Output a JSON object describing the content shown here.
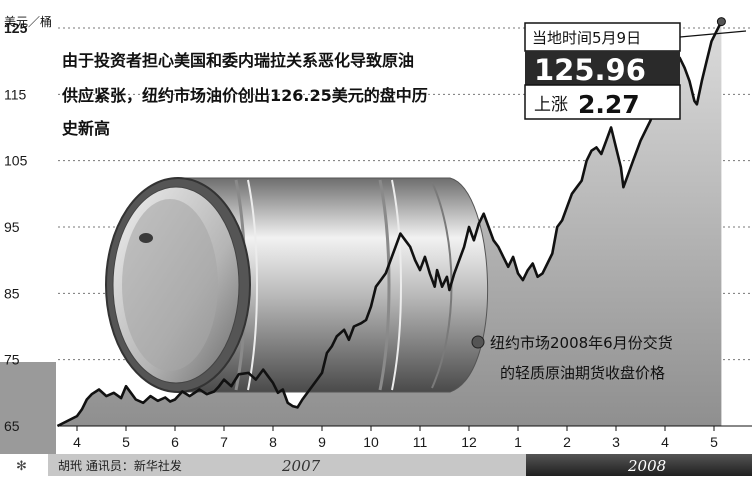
{
  "chart_data": {
    "type": "line",
    "unit_label": "美元／桶",
    "title_lines": [
      "由于投资者担心美国和委内瑞拉关系恶化导致原油",
      "供应紧张，纽约市场油价创出126.25美元的盘中历",
      "史新高"
    ],
    "ylim": [
      65,
      125
    ],
    "y_ticks": [
      125,
      115,
      105,
      95,
      85,
      75,
      65
    ],
    "x_tick_labels": [
      "4",
      "5",
      "6",
      "7",
      "8",
      "9",
      "10",
      "11",
      "12",
      "1",
      "2",
      "3",
      "4",
      "5"
    ],
    "years": [
      "2007",
      "2008"
    ],
    "grid": true,
    "legend": {
      "line1": "纽约市场2008年6月份交货",
      "line2": "的轻质原油期货收盘价格",
      "placement": "right"
    },
    "callout": {
      "label": "当地时间5月9日",
      "price": "125.96",
      "change_label": "上涨",
      "change_value": "2.27"
    },
    "source": "胡玳 通讯员：新华社发",
    "series": [
      {
        "values": [
          [
            0.0,
            66.5
          ],
          [
            0.1,
            67.5
          ],
          [
            0.2,
            69.0
          ],
          [
            0.3,
            69.8
          ],
          [
            0.45,
            70.5
          ],
          [
            0.6,
            69.5
          ],
          [
            0.75,
            70.0
          ],
          [
            0.9,
            69.2
          ],
          [
            1.0,
            71.0
          ],
          [
            1.1,
            70.0
          ],
          [
            1.2,
            69.0
          ],
          [
            1.35,
            68.5
          ],
          [
            1.5,
            69.5
          ],
          [
            1.65,
            68.8
          ],
          [
            1.8,
            69.3
          ],
          [
            1.9,
            68.7
          ],
          [
            2.0,
            69.0
          ],
          [
            2.15,
            70.2
          ],
          [
            2.3,
            69.5
          ],
          [
            2.5,
            70.5
          ],
          [
            2.65,
            69.8
          ],
          [
            2.8,
            70.2
          ],
          [
            2.9,
            71.0
          ],
          [
            3.0,
            72.0
          ],
          [
            3.15,
            71.0
          ],
          [
            3.3,
            72.8
          ],
          [
            3.5,
            73.0
          ],
          [
            3.65,
            72.0
          ],
          [
            3.8,
            73.5
          ],
          [
            3.9,
            72.5
          ],
          [
            4.0,
            71.5
          ],
          [
            4.1,
            70.0
          ],
          [
            4.2,
            70.5
          ],
          [
            4.3,
            68.5
          ],
          [
            4.4,
            68.0
          ],
          [
            4.5,
            67.8
          ],
          [
            4.6,
            69.0
          ],
          [
            4.75,
            70.5
          ],
          [
            4.9,
            72.0
          ],
          [
            5.0,
            73.0
          ],
          [
            5.1,
            76.0
          ],
          [
            5.2,
            77.0
          ],
          [
            5.3,
            78.5
          ],
          [
            5.45,
            79.5
          ],
          [
            5.55,
            78.0
          ],
          [
            5.65,
            80.0
          ],
          [
            5.8,
            80.5
          ],
          [
            5.9,
            81.0
          ],
          [
            6.0,
            83.0
          ],
          [
            6.1,
            86.0
          ],
          [
            6.2,
            87.0
          ],
          [
            6.3,
            88.0
          ],
          [
            6.4,
            90.0
          ],
          [
            6.5,
            92.0
          ],
          [
            6.6,
            94.0
          ],
          [
            6.7,
            93.0
          ],
          [
            6.8,
            92.0
          ],
          [
            6.9,
            90.0
          ],
          [
            7.0,
            88.5
          ],
          [
            7.1,
            90.5
          ],
          [
            7.2,
            88.0
          ],
          [
            7.3,
            86.0
          ],
          [
            7.35,
            88.5
          ],
          [
            7.45,
            86.0
          ],
          [
            7.55,
            87.5
          ],
          [
            7.6,
            85.5
          ],
          [
            7.7,
            88.0
          ],
          [
            7.8,
            90.0
          ],
          [
            7.9,
            92.0
          ],
          [
            8.0,
            95.0
          ],
          [
            8.1,
            93.0
          ],
          [
            8.2,
            95.5
          ],
          [
            8.3,
            97.0
          ],
          [
            8.4,
            95.0
          ],
          [
            8.5,
            93.0
          ],
          [
            8.6,
            92.0
          ],
          [
            8.7,
            90.5
          ],
          [
            8.8,
            89.0
          ],
          [
            8.9,
            90.5
          ],
          [
            9.0,
            88.0
          ],
          [
            9.1,
            87.0
          ],
          [
            9.2,
            88.5
          ],
          [
            9.3,
            89.5
          ],
          [
            9.4,
            87.5
          ],
          [
            9.5,
            88.0
          ],
          [
            9.6,
            89.5
          ],
          [
            9.7,
            91.0
          ],
          [
            9.8,
            95.0
          ],
          [
            9.9,
            96.0
          ],
          [
            10.0,
            98.0
          ],
          [
            10.1,
            100.0
          ],
          [
            10.2,
            101.0
          ],
          [
            10.3,
            102.0
          ],
          [
            10.4,
            105.0
          ],
          [
            10.5,
            106.5
          ],
          [
            10.6,
            107.0
          ],
          [
            10.7,
            106.0
          ],
          [
            10.8,
            108.0
          ],
          [
            10.9,
            110.0
          ],
          [
            11.0,
            107.0
          ],
          [
            11.1,
            104.0
          ],
          [
            11.15,
            101.0
          ],
          [
            11.25,
            103.0
          ],
          [
            11.35,
            105.0
          ],
          [
            11.5,
            108.0
          ],
          [
            11.6,
            109.5
          ],
          [
            11.7,
            111.0
          ],
          [
            11.8,
            113.0
          ],
          [
            11.9,
            115.0
          ],
          [
            12.0,
            116.5
          ],
          [
            12.1,
            118.0
          ],
          [
            12.2,
            119.5
          ],
          [
            12.3,
            120.5
          ],
          [
            12.4,
            119.0
          ],
          [
            12.5,
            117.0
          ],
          [
            12.6,
            114.0
          ],
          [
            12.65,
            113.5
          ],
          [
            12.75,
            117.0
          ],
          [
            12.85,
            120.0
          ],
          [
            12.95,
            123.0
          ],
          [
            13.05,
            124.5
          ],
          [
            13.15,
            125.96
          ]
        ]
      }
    ]
  }
}
